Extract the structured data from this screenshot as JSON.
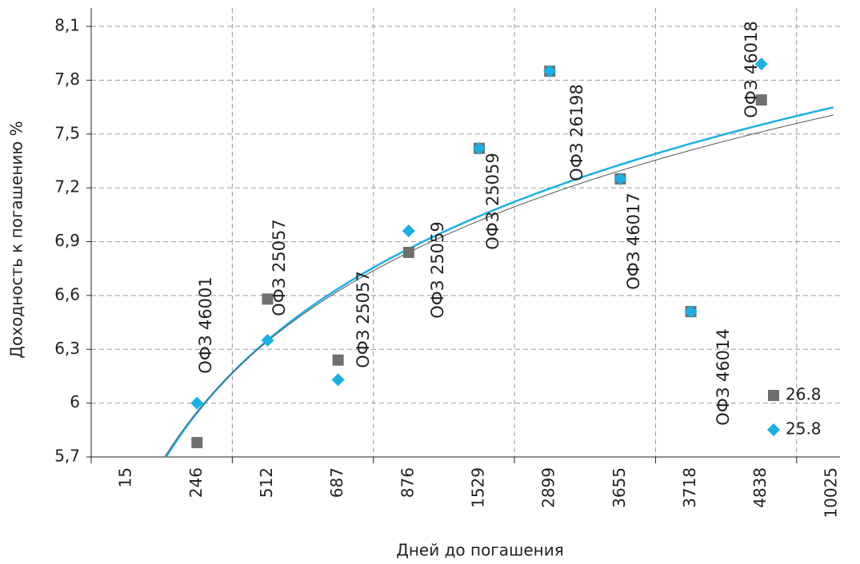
{
  "chart_data": {
    "type": "scatter",
    "x_label": "Дней до погашения",
    "y_label": "Доходность к погашению %",
    "categories": [
      "15",
      "246",
      "512",
      "687",
      "876",
      "1529",
      "2899",
      "3655",
      "3718",
      "4838",
      "10025"
    ],
    "series": [
      {
        "name": "26.8",
        "color": "#707070",
        "marker": "square",
        "values": [
          null,
          5.78,
          6.58,
          6.24,
          6.84,
          7.42,
          7.85,
          7.25,
          6.51,
          7.69,
          null
        ]
      },
      {
        "name": "25.8",
        "color": "#1ab0e3",
        "marker": "diamond",
        "values": [
          null,
          6.0,
          6.35,
          6.13,
          6.96,
          7.42,
          7.85,
          7.25,
          6.51,
          7.89,
          null
        ]
      }
    ],
    "trendline": "log",
    "ylim": [
      5.7,
      8.1
    ],
    "yticks": [
      {
        "value": 5.7,
        "label": "5,7"
      },
      6,
      {
        "value": 6.3,
        "label": "6,3"
      },
      {
        "value": 6.6,
        "label": "6,6"
      },
      {
        "value": 6.9,
        "label": "6,9"
      },
      {
        "value": 7.2,
        "label": "7,2"
      },
      {
        "value": 7.5,
        "label": "7,5"
      },
      {
        "value": 7.8,
        "label": "7,8"
      },
      {
        "value": 8.1,
        "label": "8,1"
      }
    ],
    "grid": true,
    "annotations": [
      "ОФЗ 46001",
      "ОФЗ 25057",
      "ОФЗ 25057",
      "ОФЗ 25059",
      "ОФЗ 25059",
      "ОФЗ 26198",
      "ОФЗ 46017",
      "ОФЗ 46014",
      "ОФЗ 46018"
    ]
  }
}
